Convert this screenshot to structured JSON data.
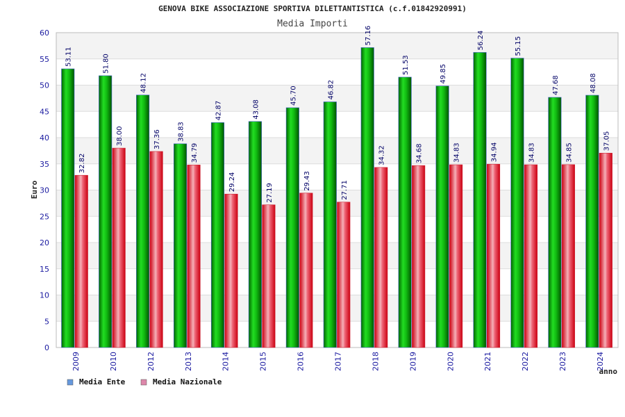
{
  "chart_data": {
    "type": "bar",
    "title": "GENOVA BIKE ASSOCIAZIONE SPORTIVA DILETTANTISTICA (c.f.01842920991)",
    "subtitle": "Media Importi",
    "xlabel": "anno",
    "ylabel": "Euro",
    "ylim": [
      0,
      60
    ],
    "yticks": [
      0,
      5,
      10,
      15,
      20,
      25,
      30,
      35,
      40,
      45,
      50,
      55,
      60
    ],
    "grid": true,
    "legend_position": "bottom-left",
    "categories": [
      "2009",
      "2010",
      "2012",
      "2013",
      "2014",
      "2015",
      "2016",
      "2017",
      "2018",
      "2019",
      "2020",
      "2021",
      "2022",
      "2023",
      "2024"
    ],
    "series": [
      {
        "name": "Media Ente",
        "color": "#00aa00",
        "legend_color": "#6699dd",
        "values": [
          53.11,
          51.8,
          48.12,
          38.83,
          42.87,
          43.08,
          45.7,
          46.82,
          57.16,
          51.53,
          49.85,
          56.24,
          55.15,
          47.68,
          48.08
        ],
        "labels": [
          "53.11",
          "51.80",
          "48.12",
          "38.83",
          "42.87",
          "43.08",
          "45.70",
          "46.82",
          "57.16",
          "51.53",
          "49.85",
          "56.24",
          "55.15",
          "47.68",
          "48.08"
        ]
      },
      {
        "name": "Media Nazionale",
        "color": "#ee2233",
        "legend_color": "#dd88aa",
        "values": [
          32.82,
          38.0,
          37.36,
          34.79,
          29.24,
          27.19,
          29.43,
          27.71,
          34.32,
          34.68,
          34.83,
          34.94,
          34.83,
          34.85,
          37.05
        ],
        "labels": [
          "32.82",
          "38.00",
          "37.36",
          "34.79",
          "29.24",
          "27.19",
          "29.43",
          "27.71",
          "34.32",
          "34.68",
          "34.83",
          "34.94",
          "34.83",
          "34.85",
          "37.05"
        ]
      }
    ]
  }
}
